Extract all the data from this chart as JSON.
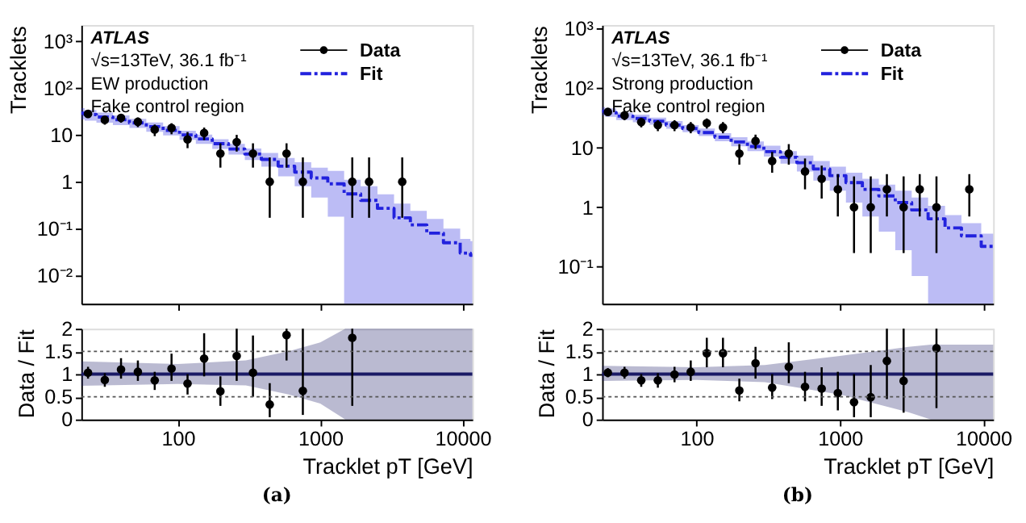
{
  "chart_data": [
    {
      "type": "scatter",
      "ylabel": "Tracklets",
      "annotations": [
        "ATLAS",
        "√s=13TeV, 36.1 fb⁻¹",
        "EW production",
        "Fake control region"
      ],
      "log": "xy",
      "xlim": [
        21,
        11700
      ],
      "ylim": [
        0.0025,
        2200
      ],
      "xticks": [
        100,
        1000,
        10000
      ],
      "yticks": [
        {
          "value": 0.01,
          "label": "10⁻²"
        },
        {
          "value": 0.1,
          "label": "10⁻¹"
        },
        1,
        10,
        {
          "value": 100,
          "label": "10²"
        },
        {
          "value": 1000,
          "label": "10³"
        }
      ],
      "tick_labels": "y",
      "legend": "top right",
      "series": [
        {
          "name": "Fit",
          "type": "step",
          "color": "#2222dd",
          "line_style": "dashed",
          "x": [
            21,
            23.4,
            30.7,
            39.9,
            52.4,
            68.8,
            90.3,
            117,
            153,
            199,
            259,
            337,
            442,
            580,
            755,
            990,
            1290,
            1679,
            2203,
            2890,
            3766,
            4900,
            6400,
            8400,
            11000,
            11700
          ],
          "values": [
            29,
            27,
            24,
            21,
            18,
            15,
            12.5,
            10,
            8.2,
            6.5,
            5,
            3.9,
            3,
            2.15,
            1.6,
            1.2,
            0.9,
            0.55,
            0.4,
            0.27,
            0.17,
            0.12,
            0.08,
            0.05,
            0.03,
            0.027
          ],
          "lower": [
            21.5,
            20,
            18.2,
            16.2,
            14,
            11.7,
            9.75,
            7.8,
            6.4,
            5,
            3.8,
            2.9,
            2.1,
            1.3,
            0.8,
            0.46,
            0.18,
            0.0025,
            0.0025,
            0.0025,
            0.0025,
            0.0025,
            0.0025,
            0.0025,
            0.0025,
            0.0025
          ],
          "upper": [
            37,
            34,
            30,
            26,
            22,
            18.3,
            15.3,
            12.2,
            10.1,
            8.1,
            6.4,
            5.1,
            4.1,
            3.2,
            2.6,
            2.0,
            1.7,
            1.1,
            0.8,
            0.54,
            0.34,
            0.24,
            0.16,
            0.1,
            0.06,
            0.054
          ]
        },
        {
          "name": "Data",
          "marker": "circle",
          "color": "#000000",
          "x": [
            23.4,
            30.7,
            39.9,
            52.4,
            68.8,
            90.3,
            117,
            153,
            199,
            259,
            337,
            442,
            580,
            755,
            1679,
            2203,
            3766
          ],
          "values": [
            28,
            21,
            23,
            19,
            13,
            14,
            8,
            11,
            4,
            7,
            4,
            1,
            4,
            1,
            1,
            1,
            1
          ],
          "errors": [
            [
              23,
              33
            ],
            [
              16.5,
              25.5
            ],
            [
              18.2,
              27.8
            ],
            [
              14.6,
              23.4
            ],
            [
              9.4,
              16.6
            ],
            [
              10.3,
              17.7
            ],
            [
              5.2,
              11.5
            ],
            [
              7.7,
              14.3
            ],
            [
              2,
              6.6
            ],
            [
              4.4,
              10
            ],
            [
              2,
              6.6
            ],
            [
              0.17,
              3.3
            ],
            [
              2,
              6.6
            ],
            [
              0.17,
              3.3
            ],
            [
              0.17,
              3.3
            ],
            [
              0.17,
              3.3
            ],
            [
              0.17,
              3.3
            ]
          ]
        }
      ]
    },
    {
      "type": "scatter",
      "xlabel": "Tracklet pT [GeV]",
      "ylabel": "Data / Fit",
      "annotations": [
        "(a)"
      ],
      "log": "x",
      "xlim": [
        21,
        11700
      ],
      "ylim": [
        0,
        2
      ],
      "xticks": [
        100,
        1000,
        10000
      ],
      "yticks": [
        0,
        0.5,
        1,
        1.5,
        2
      ],
      "ref_lines": [
        {
          "axis": "y",
          "value": 0.5,
          "line_style": "dotted"
        },
        {
          "axis": "y",
          "value": 1.5,
          "line_style": "dotted"
        }
      ],
      "series": [
        {
          "type": "line",
          "color": "#1a1a66",
          "line_style": "solid",
          "x": [
            21,
            100,
            300,
            600,
            1000,
            1500,
            11700
          ],
          "values": [
            1,
            1,
            1,
            1,
            1,
            1,
            1
          ],
          "lower": [
            0.74,
            0.78,
            0.75,
            0.55,
            0.35,
            0,
            0
          ],
          "upper": [
            1.28,
            1.22,
            1.3,
            1.5,
            1.7,
            2,
            2
          ]
        },
        {
          "marker": "circle",
          "color": "#000000",
          "x": [
            23.4,
            30.7,
            39.9,
            52.4,
            68.8,
            90.3,
            117,
            153,
            199,
            259,
            337,
            442,
            580,
            755,
            1679
          ],
          "values": [
            1.03,
            0.87,
            1.1,
            1.05,
            0.86,
            1.12,
            0.79,
            1.34,
            0.62,
            1.4,
            1.03,
            0.33,
            1.86,
            0.63,
            1.8
          ],
          "errors": [
            [
              0.9,
              1.16
            ],
            [
              0.72,
              1.02
            ],
            [
              0.9,
              1.35
            ],
            [
              0.85,
              1.3
            ],
            [
              0.65,
              1.05
            ],
            [
              0.85,
              1.45
            ],
            [
              0.55,
              1.0
            ],
            [
              0.95,
              1.9
            ],
            [
              0.3,
              0.95
            ],
            [
              0.85,
              2
            ],
            [
              0.5,
              1.85
            ],
            [
              0.05,
              0.8
            ],
            [
              1.3,
              2
            ],
            [
              0.1,
              2
            ],
            [
              0.3,
              2
            ]
          ]
        }
      ]
    },
    {
      "type": "scatter",
      "ylabel": "Tracklets",
      "annotations": [
        "ATLAS",
        "√s=13TeV, 36.1 fb⁻¹",
        "Strong production",
        "Fake control region"
      ],
      "log": "xy",
      "xlim": [
        22,
        11700
      ],
      "ylim": [
        0.024,
        1150
      ],
      "xticks": [
        100,
        1000,
        10000
      ],
      "yticks": [
        {
          "value": 0.1,
          "label": "10⁻¹"
        },
        1,
        10,
        {
          "value": 100,
          "label": "10²"
        },
        {
          "value": 1000,
          "label": "10³"
        }
      ],
      "tick_labels": "y",
      "legend": "top right",
      "series": [
        {
          "name": "Fit",
          "type": "step",
          "color": "#2222dd",
          "line_style": "dashed",
          "x": [
            22,
            24.1,
            31.5,
            41.2,
            53.8,
            70.3,
            91.2,
            118,
            153,
            199,
            258,
            337,
            440,
            571,
            746,
            967,
            1254,
            1640,
            2125,
            2780,
            3600,
            4710,
            6200,
            7980,
            11700
          ],
          "values": [
            41,
            39,
            34,
            31,
            28,
            24,
            21,
            18,
            15,
            12.5,
            10.5,
            8.6,
            6.9,
            5.6,
            4.4,
            3.4,
            2.6,
            2.0,
            1.55,
            1.2,
            0.9,
            0.64,
            0.45,
            0.33,
            0.22
          ],
          "lower": [
            34.8,
            33,
            29.2,
            26.7,
            24.4,
            20.9,
            18.3,
            15.7,
            12.9,
            10.6,
            8.8,
            7.1,
            5.4,
            4.0,
            2.8,
            1.9,
            1.2,
            0.7,
            0.39,
            0.19,
            0.07,
            0.024,
            0.024,
            0.024,
            0.024
          ],
          "upper": [
            48,
            46,
            39,
            36,
            32,
            28,
            24,
            21,
            17.5,
            15,
            12.8,
            10.8,
            8.8,
            7.4,
            6,
            4.8,
            3.8,
            3,
            2.4,
            1.9,
            1.46,
            1.06,
            0.74,
            0.54,
            0.36
          ]
        },
        {
          "name": "Data",
          "marker": "circle",
          "color": "#000000",
          "x": [
            24.1,
            31.5,
            41.2,
            53.8,
            70.3,
            91.2,
            118,
            153,
            199,
            258,
            337,
            440,
            571,
            746,
            967,
            1254,
            1640,
            2125,
            2780,
            3600,
            4710,
            7980
          ],
          "values": [
            40,
            35,
            27,
            24,
            24,
            22,
            26,
            22,
            8,
            13,
            6,
            8,
            4,
            3,
            2,
            1,
            1,
            2,
            1,
            2,
            1,
            2
          ],
          "errors": [
            [
              34,
              46
            ],
            [
              29,
              41
            ],
            [
              22,
              32
            ],
            [
              19,
              29
            ],
            [
              19,
              29
            ],
            [
              17.5,
              27
            ],
            [
              21,
              31
            ],
            [
              17.5,
              27
            ],
            [
              5.2,
              11.5
            ],
            [
              9.5,
              16.6
            ],
            [
              3.8,
              8.5
            ],
            [
              5.2,
              11.5
            ],
            [
              2,
              6.6
            ],
            [
              1.4,
              5
            ],
            [
              0.7,
              3.6
            ],
            [
              0.17,
              3.3
            ],
            [
              0.17,
              3.3
            ],
            [
              0.7,
              3.6
            ],
            [
              0.17,
              3.3
            ],
            [
              0.7,
              3.6
            ],
            [
              0.17,
              3.3
            ],
            [
              0.7,
              3.6
            ]
          ]
        }
      ]
    },
    {
      "type": "scatter",
      "xlabel": "Tracklet pT [GeV]",
      "ylabel": "Data / Fit",
      "annotations": [
        "(b)"
      ],
      "log": "x",
      "xlim": [
        22,
        11700
      ],
      "ylim": [
        0,
        2
      ],
      "xticks": [
        100,
        1000,
        10000
      ],
      "yticks": [
        0,
        0.5,
        1,
        1.5,
        2
      ],
      "ref_lines": [
        {
          "axis": "y",
          "value": 0.5,
          "line_style": "dotted"
        },
        {
          "axis": "y",
          "value": 1.5,
          "line_style": "dotted"
        }
      ],
      "series": [
        {
          "type": "line",
          "color": "#1a1a66",
          "line_style": "solid",
          "x": [
            22,
            100,
            300,
            1000,
            3000,
            4300,
            11700
          ],
          "values": [
            1,
            1,
            1,
            1,
            1,
            1,
            1
          ],
          "lower": [
            0.85,
            0.87,
            0.82,
            0.55,
            0.16,
            0,
            0
          ],
          "upper": [
            1.18,
            1.15,
            1.2,
            1.4,
            1.6,
            1.65,
            1.65
          ]
        },
        {
          "marker": "circle",
          "color": "#000000",
          "x": [
            24.1,
            31.5,
            41.2,
            53.8,
            70.3,
            91.2,
            118,
            153,
            199,
            258,
            337,
            440,
            571,
            746,
            967,
            1254,
            1640,
            2125,
            2780,
            4710
          ],
          "values": [
            1.03,
            1.03,
            0.86,
            0.86,
            0.99,
            1.05,
            1.46,
            1.46,
            0.64,
            1.24,
            0.7,
            1.16,
            0.72,
            0.68,
            0.58,
            0.38,
            0.49,
            1.29,
            0.85,
            1.57
          ],
          "errors": [
            [
              0.93,
              1.13
            ],
            [
              0.9,
              1.16
            ],
            [
              0.72,
              1.0
            ],
            [
              0.7,
              1.02
            ],
            [
              0.82,
              1.16
            ],
            [
              0.85,
              1.3
            ],
            [
              1.15,
              1.8
            ],
            [
              1.15,
              1.8
            ],
            [
              0.4,
              0.9
            ],
            [
              0.9,
              1.6
            ],
            [
              0.45,
              1.0
            ],
            [
              0.8,
              1.7
            ],
            [
              0.4,
              1.05
            ],
            [
              0.3,
              1.15
            ],
            [
              0.2,
              1.05
            ],
            [
              0.05,
              1.0
            ],
            [
              0.05,
              1.2
            ],
            [
              0.45,
              2
            ],
            [
              0.15,
              2
            ],
            [
              0.25,
              2
            ]
          ]
        }
      ]
    }
  ]
}
